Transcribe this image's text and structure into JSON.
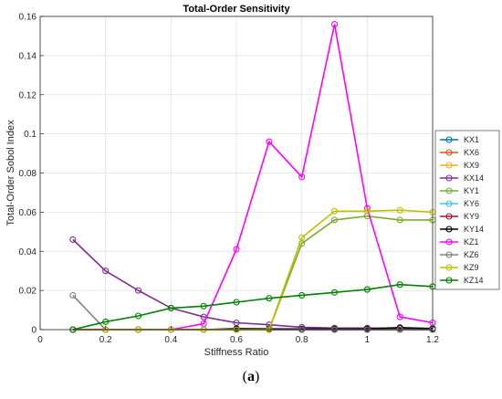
{
  "caption": {
    "open": "(",
    "letter": "a",
    "close": ")"
  },
  "chart_data": {
    "type": "line",
    "title": "Total-Order Sensitivity",
    "xlabel": "Stiffness Ratio",
    "ylabel": "Total-Order Sobol Index",
    "xlim": [
      0,
      1.2
    ],
    "ylim": [
      0,
      0.16
    ],
    "xticks": [
      "0",
      "0.2",
      "0.4",
      "0.6",
      "0.8",
      "1",
      "1.2"
    ],
    "yticks": [
      "0",
      "0.02",
      "0.04",
      "0.06",
      "0.08",
      "0.1",
      "0.12",
      "0.14",
      "0.16"
    ],
    "grid": true,
    "legend_position": "right",
    "marker": "circle-open",
    "x": [
      0.1,
      0.2,
      0.3,
      0.4,
      0.5,
      0.6,
      0.7,
      0.8,
      0.9,
      1.0,
      1.1,
      1.2
    ],
    "series": [
      {
        "name": "KX1",
        "color": "#0072BD",
        "values": [
          0,
          0,
          0,
          0,
          0,
          0,
          0,
          0,
          0,
          0,
          0,
          0
        ]
      },
      {
        "name": "KX6",
        "color": "#D95319",
        "values": [
          0,
          0,
          0,
          0,
          0,
          0,
          0,
          0,
          0,
          0,
          0,
          0
        ]
      },
      {
        "name": "KX9",
        "color": "#EDB120",
        "values": [
          0,
          0,
          0,
          0,
          0,
          0,
          0,
          0,
          0,
          0,
          0,
          0
        ]
      },
      {
        "name": "KX14",
        "color": "#7E2F8E",
        "values": [
          0.046,
          0.03,
          0.02,
          0.011,
          0.0065,
          0.0035,
          0.0025,
          0.0012,
          0.0008,
          0.0008,
          0.0007,
          0.0006
        ]
      },
      {
        "name": "KY1",
        "color": "#77AC30",
        "values": [
          0,
          0,
          0,
          0,
          0,
          0,
          0,
          0.044,
          0.056,
          0.058,
          0.056,
          0.056
        ]
      },
      {
        "name": "KY6",
        "color": "#4DBEEE",
        "values": [
          0,
          0,
          0,
          0,
          0,
          0,
          0,
          0,
          0,
          0,
          0,
          0
        ]
      },
      {
        "name": "KY9",
        "color": "#A2142F",
        "values": [
          0,
          0,
          0,
          0,
          0,
          0,
          0,
          0,
          0,
          0,
          0,
          0
        ]
      },
      {
        "name": "KY14",
        "color": "#000000",
        "values": [
          0,
          0,
          0,
          0,
          0,
          0.0005,
          0.0004,
          0.0003,
          0.0003,
          0.0004,
          0.001,
          0.0005
        ]
      },
      {
        "name": "KZ1",
        "color": "#FF00FF",
        "values": [
          0,
          0,
          0,
          0,
          0.003,
          0.041,
          0.096,
          0.078,
          0.156,
          0.062,
          0.0065,
          0.0035
        ]
      },
      {
        "name": "KZ6",
        "color": "#808080",
        "values": [
          0.0175,
          0,
          0,
          0,
          0,
          0,
          0,
          0,
          0,
          0,
          0,
          0
        ]
      },
      {
        "name": "KZ9",
        "color": "#BFBF00",
        "values": [
          0,
          0,
          0,
          0,
          0,
          0,
          0,
          0.047,
          0.0605,
          0.0605,
          0.061,
          0.06
        ]
      },
      {
        "name": "KZ14",
        "color": "#008000",
        "values": [
          0,
          0.004,
          0.007,
          0.011,
          0.012,
          0.014,
          0.016,
          0.0175,
          0.019,
          0.0205,
          0.023,
          0.022
        ]
      }
    ]
  }
}
